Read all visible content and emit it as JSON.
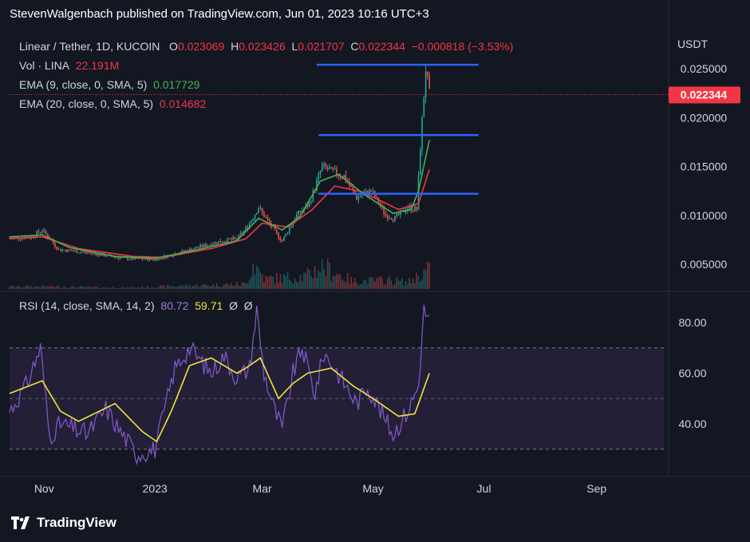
{
  "header": {
    "publisher": "StevenWalgenbach published on TradingView.com, Jun 01, 2023 10:16 UTC+3"
  },
  "legend": {
    "symbol": "Linear / Tether, 1D, KUCOIN",
    "open_label": "O",
    "open": "0.023069",
    "high_label": "H",
    "high": "0.023426",
    "low_label": "L",
    "low": "0.021707",
    "close_label": "C",
    "close": "0.022344",
    "change": "−0.000818 (−3.53%)",
    "vol_label": "Vol · LINA",
    "vol": "22.191M",
    "ema9_label": "EMA (9, close, 0, SMA, 5)",
    "ema9": "0.017729",
    "ema20_label": "EMA (20, close, 0, SMA, 5)",
    "ema20": "0.014682",
    "rsi_label": "RSI (14, close, SMA, 14, 2)",
    "rsi": "80.72",
    "rsi_ma": "59.71",
    "na1": "Ø",
    "na2": "Ø"
  },
  "chart_data": [
    {
      "type": "candlestick",
      "currency_label": "USDT",
      "y_ticks": [
        "0.025000",
        "0.020000",
        "0.015000",
        "0.010000",
        "0.005000"
      ],
      "y_tick_values": [
        0.025,
        0.02,
        0.015,
        0.01,
        0.005
      ],
      "last_price": "0.022344",
      "x_ticks": [
        "Nov",
        "2023",
        "Mar",
        "May",
        "Jul",
        "Sep"
      ],
      "x_tick_dates": [
        "2022-11-01",
        "2023-01-01",
        "2023-03-01",
        "2023-05-01",
        "2023-07-01",
        "2023-09-01"
      ],
      "x_range": [
        "2022-10-13",
        "2023-10-08"
      ],
      "y_range": [
        0.0027,
        0.0275
      ],
      "price_keypoints": [
        [
          "2022-10-13",
          0.0077
        ],
        [
          "2022-10-25",
          0.0078
        ],
        [
          "2022-10-31",
          0.0085
        ],
        [
          "2022-11-09",
          0.0065
        ],
        [
          "2022-11-25",
          0.0062
        ],
        [
          "2022-12-15",
          0.0056
        ],
        [
          "2023-01-01",
          0.0055
        ],
        [
          "2023-01-15",
          0.0062
        ],
        [
          "2023-02-05",
          0.0073
        ],
        [
          "2023-02-15",
          0.0076
        ],
        [
          "2023-02-20",
          0.0086
        ],
        [
          "2023-02-27",
          0.0108
        ],
        [
          "2023-03-08",
          0.0083
        ],
        [
          "2023-03-12",
          0.0074
        ],
        [
          "2023-03-20",
          0.01
        ],
        [
          "2023-03-27",
          0.0112
        ],
        [
          "2023-04-03",
          0.015
        ],
        [
          "2023-04-08",
          0.0145
        ],
        [
          "2023-04-15",
          0.014
        ],
        [
          "2023-04-22",
          0.0118
        ],
        [
          "2023-04-30",
          0.0125
        ],
        [
          "2023-05-08",
          0.01
        ],
        [
          "2023-05-13",
          0.0097
        ],
        [
          "2023-05-20",
          0.0108
        ],
        [
          "2023-05-25",
          0.0106
        ],
        [
          "2023-05-27",
          0.017
        ],
        [
          "2023-05-30",
          0.025
        ],
        [
          "2023-06-01",
          0.0223
        ]
      ],
      "ema9_keypoints": [
        [
          "2022-10-13",
          0.0078
        ],
        [
          "2022-10-31",
          0.008
        ],
        [
          "2022-11-15",
          0.0067
        ],
        [
          "2022-12-10",
          0.0058
        ],
        [
          "2023-01-01",
          0.0056
        ],
        [
          "2023-01-25",
          0.0065
        ],
        [
          "2023-02-15",
          0.0074
        ],
        [
          "2023-02-27",
          0.0097
        ],
        [
          "2023-03-12",
          0.0085
        ],
        [
          "2023-03-22",
          0.0099
        ],
        [
          "2023-04-02",
          0.0135
        ],
        [
          "2023-04-12",
          0.0142
        ],
        [
          "2023-04-25",
          0.0123
        ],
        [
          "2023-05-12",
          0.0102
        ],
        [
          "2023-05-22",
          0.0106
        ],
        [
          "2023-05-26",
          0.0125
        ],
        [
          "2023-06-01",
          0.0177
        ]
      ],
      "ema20_keypoints": [
        [
          "2022-10-13",
          0.0076
        ],
        [
          "2022-10-31",
          0.0078
        ],
        [
          "2022-11-20",
          0.0066
        ],
        [
          "2022-12-20",
          0.0058
        ],
        [
          "2023-01-05",
          0.0057
        ],
        [
          "2023-02-01",
          0.0066
        ],
        [
          "2023-02-20",
          0.0076
        ],
        [
          "2023-03-01",
          0.0092
        ],
        [
          "2023-03-15",
          0.0088
        ],
        [
          "2023-03-28",
          0.0105
        ],
        [
          "2023-04-10",
          0.013
        ],
        [
          "2023-04-25",
          0.0124
        ],
        [
          "2023-05-15",
          0.0106
        ],
        [
          "2023-05-26",
          0.0112
        ],
        [
          "2023-06-01",
          0.0147
        ]
      ],
      "volume_keypoints": [
        [
          "2022-10-13",
          0.1
        ],
        [
          "2022-11-01",
          0.1
        ],
        [
          "2022-12-15",
          0.05
        ],
        [
          "2023-02-20",
          0.2
        ],
        [
          "2023-02-24",
          1.0
        ],
        [
          "2023-03-03",
          0.4
        ],
        [
          "2023-03-25",
          0.5
        ],
        [
          "2023-04-03",
          0.9
        ],
        [
          "2023-04-20",
          0.3
        ],
        [
          "2023-05-10",
          0.35
        ],
        [
          "2023-05-20",
          0.25
        ],
        [
          "2023-05-31",
          0.75
        ]
      ],
      "horizontal_lines": [
        {
          "y": 0.0254,
          "from": "2023-03-31",
          "to": "2023-06-28",
          "color": "#2962ff"
        },
        {
          "y": 0.0182,
          "from": "2023-04-01",
          "to": "2023-06-28",
          "color": "#2962ff"
        },
        {
          "y": 0.0122,
          "from": "2023-04-01",
          "to": "2023-06-28",
          "color": "#2962ff"
        }
      ]
    },
    {
      "type": "line",
      "name": "RSI",
      "y_ticks": [
        "80.00",
        "60.00",
        "40.00"
      ],
      "y_tick_values": [
        80,
        60,
        40
      ],
      "y_range": [
        22,
        88
      ],
      "band": [
        30,
        70
      ],
      "midline": 50,
      "rsi_keypoints": [
        [
          "2022-10-13",
          45
        ],
        [
          "2022-10-22",
          55
        ],
        [
          "2022-10-30",
          70
        ],
        [
          "2022-11-04",
          35
        ],
        [
          "2022-11-10",
          40
        ],
        [
          "2022-11-25",
          36
        ],
        [
          "2022-12-05",
          46
        ],
        [
          "2022-12-12",
          38
        ],
        [
          "2022-12-22",
          28
        ],
        [
          "2023-01-01",
          30
        ],
        [
          "2023-01-12",
          62
        ],
        [
          "2023-01-20",
          70
        ],
        [
          "2023-02-01",
          60
        ],
        [
          "2023-02-08",
          67
        ],
        [
          "2023-02-15",
          58
        ],
        [
          "2023-02-22",
          62
        ],
        [
          "2023-02-26",
          85
        ],
        [
          "2023-03-02",
          60
        ],
        [
          "2023-03-08",
          45
        ],
        [
          "2023-03-12",
          38
        ],
        [
          "2023-03-18",
          60
        ],
        [
          "2023-03-23",
          70
        ],
        [
          "2023-03-30",
          52
        ],
        [
          "2023-04-04",
          68
        ],
        [
          "2023-04-10",
          62
        ],
        [
          "2023-04-22",
          48
        ],
        [
          "2023-04-28",
          55
        ],
        [
          "2023-05-06",
          44
        ],
        [
          "2023-05-12",
          36
        ],
        [
          "2023-05-20",
          45
        ],
        [
          "2023-05-26",
          55
        ],
        [
          "2023-05-29",
          85
        ],
        [
          "2023-06-01",
          81
        ]
      ],
      "rsi_ma_keypoints": [
        [
          "2022-10-13",
          52
        ],
        [
          "2022-10-31",
          57
        ],
        [
          "2022-11-10",
          45
        ],
        [
          "2022-11-20",
          41
        ],
        [
          "2022-12-10",
          48
        ],
        [
          "2022-12-25",
          37
        ],
        [
          "2023-01-02",
          33
        ],
        [
          "2023-01-10",
          45
        ],
        [
          "2023-01-20",
          63
        ],
        [
          "2023-02-01",
          66
        ],
        [
          "2023-02-15",
          60
        ],
        [
          "2023-02-20",
          62
        ],
        [
          "2023-02-28",
          66
        ],
        [
          "2023-03-10",
          50
        ],
        [
          "2023-03-18",
          56
        ],
        [
          "2023-03-26",
          60
        ],
        [
          "2023-04-08",
          62
        ],
        [
          "2023-04-20",
          55
        ],
        [
          "2023-05-01",
          50
        ],
        [
          "2023-05-15",
          43
        ],
        [
          "2023-05-24",
          44
        ],
        [
          "2023-06-01",
          60
        ]
      ],
      "colors": {
        "rsi": "#7e57c2",
        "rsi_ma": "#f3e33c",
        "band_fill": "#2a2440"
      }
    }
  ],
  "footer": {
    "brand": "TradingView"
  }
}
